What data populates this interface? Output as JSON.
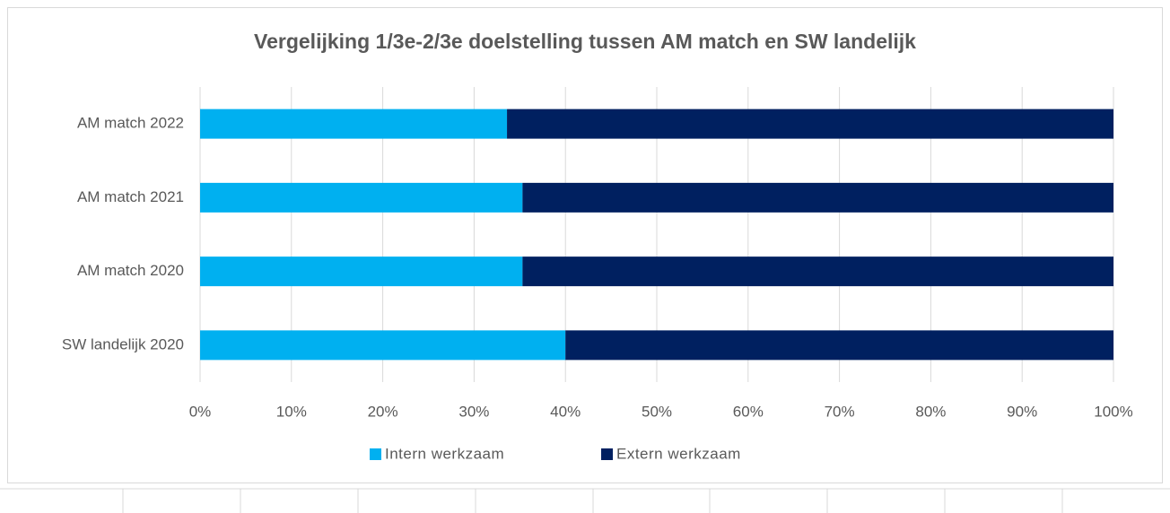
{
  "chart_data": {
    "type": "stacked_bar_horizontal",
    "title": "Vergelijking 1/3e-2/3e doelstelling tussen AM match en SW landelijk",
    "categories": [
      "AM match 2022",
      "AM match 2021",
      "AM match 2020",
      "SW landelijk 2020"
    ],
    "series": [
      {
        "name": "Intern werkzaam",
        "color": "#00b0f0",
        "values": [
          33.6,
          35.3,
          35.3,
          40
        ]
      },
      {
        "name": "Extern werkzaam",
        "color": "#002060",
        "values": [
          66.4,
          64.7,
          64.7,
          60
        ]
      }
    ],
    "xlim": [
      0,
      100
    ],
    "xticks": [
      {
        "value": 0,
        "label": "0%"
      },
      {
        "value": 10,
        "label": "10%"
      },
      {
        "value": 20,
        "label": "20%"
      },
      {
        "value": 30,
        "label": "30%"
      },
      {
        "value": 40,
        "label": "40%"
      },
      {
        "value": 50,
        "label": "50%"
      },
      {
        "value": 60,
        "label": "60%"
      },
      {
        "value": 70,
        "label": "70%"
      },
      {
        "value": 80,
        "label": "80%"
      },
      {
        "value": 90,
        "label": "90%"
      },
      {
        "value": 100,
        "label": "100%"
      }
    ],
    "grid": true,
    "legend": "bottom"
  }
}
